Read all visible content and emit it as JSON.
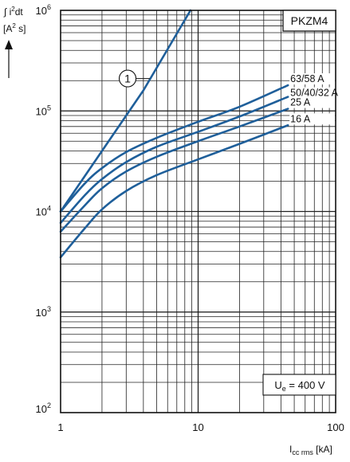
{
  "chart_data": {
    "type": "line",
    "title": "PKZM4",
    "annotation": "Ue = 400 V",
    "annotation_parts": {
      "base": "U",
      "sub": "e",
      "rest": " = 400 V"
    },
    "ylabel_parts": {
      "line1_pre": "∫ i",
      "line1_sup": "2",
      "line1_post": "dt",
      "line2_pre": "[A",
      "line2_sup": "2",
      "line2_post": " s]"
    },
    "xlabel_parts": {
      "base": "I",
      "sub": "cc rms",
      "rest": " [kA]"
    },
    "x_scale": "log",
    "y_scale": "log",
    "xlim": [
      1,
      100
    ],
    "ylim": [
      100,
      1000000
    ],
    "x_ticks": [
      {
        "value": 1,
        "label": "1"
      },
      {
        "value": 10,
        "label": "10"
      },
      {
        "value": 100,
        "label": "100"
      }
    ],
    "y_ticks": [
      {
        "value": 100,
        "base": "10",
        "exp": "2"
      },
      {
        "value": 1000,
        "base": "10",
        "exp": "3"
      },
      {
        "value": 10000,
        "base": "10",
        "exp": "4"
      },
      {
        "value": 100000,
        "base": "10",
        "exp": "5"
      },
      {
        "value": 1000000,
        "base": "10",
        "exp": "6"
      }
    ],
    "grid": true,
    "line_color": "#1f5f9a",
    "series": [
      {
        "name": "1",
        "label": "1",
        "label_style": "circled",
        "x": [
          1,
          2,
          4,
          8.8
        ],
        "y": [
          10000,
          40000,
          160000,
          1000000
        ]
      },
      {
        "name": "63/58 A",
        "label": "63/58 A",
        "x": [
          1,
          1.5,
          2,
          3,
          5,
          10,
          20,
          45
        ],
        "y": [
          10000,
          19000,
          27000,
          39000,
          54000,
          78000,
          110000,
          180000
        ]
      },
      {
        "name": "50/40/32 A",
        "label": "50/40/32 A",
        "x": [
          1,
          1.5,
          2,
          3,
          5,
          10,
          20,
          45
        ],
        "y": [
          7700,
          14500,
          21000,
          31000,
          44000,
          62000,
          88000,
          138000
        ]
      },
      {
        "name": "25 A",
        "label": "25 A",
        "x": [
          1,
          1.5,
          2,
          3,
          5,
          10,
          20,
          45
        ],
        "y": [
          6300,
          11500,
          17000,
          25000,
          35000,
          50000,
          70000,
          105000
        ]
      },
      {
        "name": "16 A",
        "label": "16 A",
        "x": [
          1,
          1.5,
          2,
          3,
          5,
          10,
          20,
          45
        ],
        "y": [
          3500,
          6800,
          10500,
          16000,
          23000,
          33000,
          47000,
          72000
        ]
      }
    ]
  }
}
